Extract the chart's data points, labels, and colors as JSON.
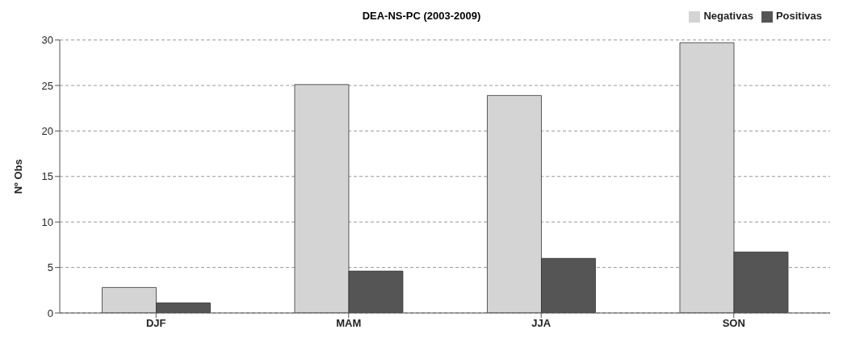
{
  "chart_data": {
    "type": "bar",
    "title": "DEA-NS-PC (2003-2009)",
    "ylabel": "Nº Obs",
    "categories": [
      "DJF",
      "MAM",
      "JJA",
      "SON"
    ],
    "series": [
      {
        "name": "Negativas",
        "color": "#d4d4d4",
        "values": [
          2.8,
          25.1,
          23.9,
          29.7
        ]
      },
      {
        "name": "Positivas",
        "color": "#555555",
        "values": [
          1.1,
          4.6,
          6.0,
          6.7
        ]
      }
    ],
    "ylim": [
      0,
      30
    ],
    "yticks": [
      0,
      5,
      10,
      15,
      20,
      25,
      30
    ],
    "grid": "y",
    "legend": "top right"
  }
}
